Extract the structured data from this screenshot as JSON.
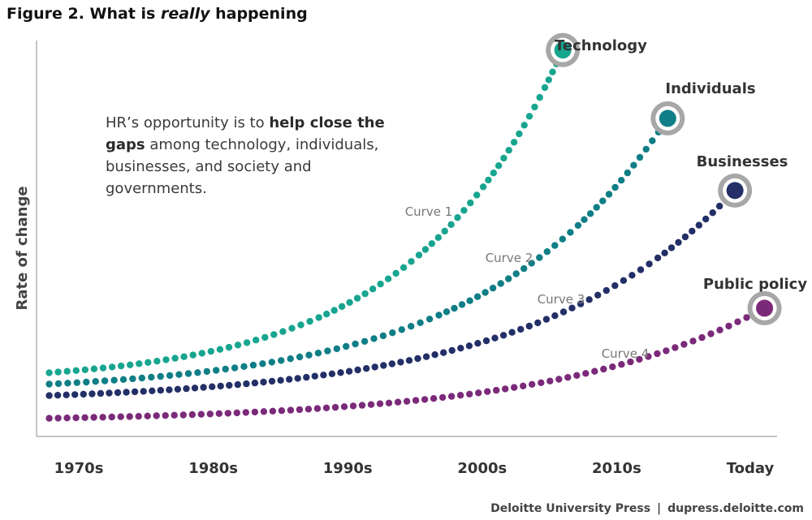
{
  "figure": {
    "title_prefix": "Figure 2. What is ",
    "title_emphasis": "really",
    "title_suffix": " happening"
  },
  "annotation": {
    "text_before": "HR’s opportunity is to ",
    "text_bold": "help close the gaps",
    "text_after": " among technology, individuals, businesses, and society and governments."
  },
  "footer": {
    "publisher": "Deloitte University Press",
    "separator": "|",
    "website": "dupress.deloitte.com"
  },
  "chart_data": {
    "type": "line",
    "title": "Figure 2. What is really happening",
    "xlabel": "",
    "ylabel": "Rate of change",
    "categories": [
      "1970s",
      "1980s",
      "1990s",
      "2000s",
      "2010s",
      "Today"
    ],
    "xlim": [
      0,
      5.35
    ],
    "ylim": [
      0,
      100
    ],
    "grid": false,
    "series": [
      {
        "name": "Technology",
        "curve_label": "Curve 1",
        "color": "#17a590",
        "end_x": 3.6,
        "start_y": 14,
        "end_y": 99
      },
      {
        "name": "Individuals",
        "curve_label": "Curve 2",
        "color": "#0f7e86",
        "end_x": 4.38,
        "start_y": 11,
        "end_y": 81
      },
      {
        "name": "Businesses",
        "curve_label": "Curve 3",
        "color": "#232f66",
        "end_x": 4.88,
        "start_y": 8,
        "end_y": 62
      },
      {
        "name": "Public policy",
        "curve_label": "Curve 4",
        "color": "#7b2a7a",
        "end_x": 5.1,
        "start_y": 2,
        "end_y": 31
      }
    ]
  }
}
